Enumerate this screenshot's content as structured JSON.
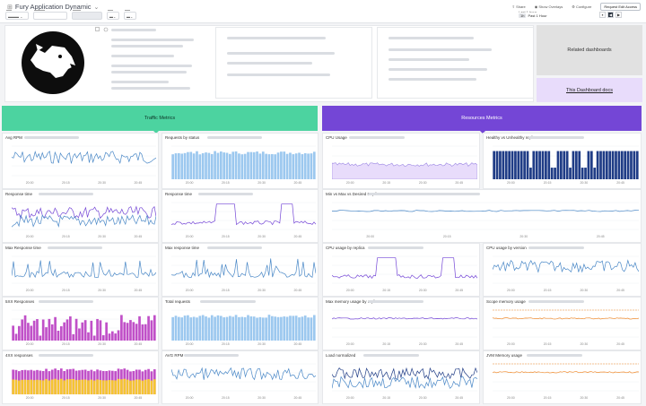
{
  "header": {
    "title": "Fury Application Dynamic",
    "actions": [
      "Share",
      "Show Overlays",
      "Configure"
    ],
    "request_edit": "Request Edit Access",
    "time_range_label": "Last 1 hour",
    "time_range_value": "Past 1 Hour",
    "zoom_label": "1h"
  },
  "bands": {
    "traffic": "Traffic Metrics",
    "resources": "Resources Metrics"
  },
  "side_links": {
    "related": "Related dashboards",
    "docs": "This Dashboard docs"
  },
  "panels": {
    "avg_rpm": "Avg RPM",
    "requests_by_status": "Requests by status",
    "cpu_usage": "CPU Usage",
    "healthy": "Healthy vs Unhealthy replicas",
    "response_time_1": "Response time",
    "response_time_2": "Response time",
    "min_max": "Min vs Max vs Desired Replicas",
    "max_response_1": "Max Response time",
    "max_response_2": "Max response time",
    "cpu_by_replica": "CPU usage by replica",
    "cpu_by_version": "CPU usage by version",
    "r5xx": "5XX Responses",
    "total_requests": "Total requests",
    "max_memory": "Max memory usage by replica",
    "scope_memory": "Scope memory usage",
    "r4xx": "4XX responses",
    "avg_rpm_2": "AVG RPM",
    "load": "Load normalized",
    "jvm": "JVM Memory usage"
  },
  "xticks": [
    "20:00",
    "20:15",
    "20:30",
    "20:45"
  ],
  "colors": {
    "green": "#4cd3a0",
    "purple": "#7446d6",
    "blue": "#4a88c7",
    "navy": "#1f3c86",
    "lightblue": "#9cc8ef",
    "magenta": "#c050c8",
    "yellow": "#f5c531",
    "orange": "#f08a2c",
    "lavender": "#e8dcfb"
  }
}
